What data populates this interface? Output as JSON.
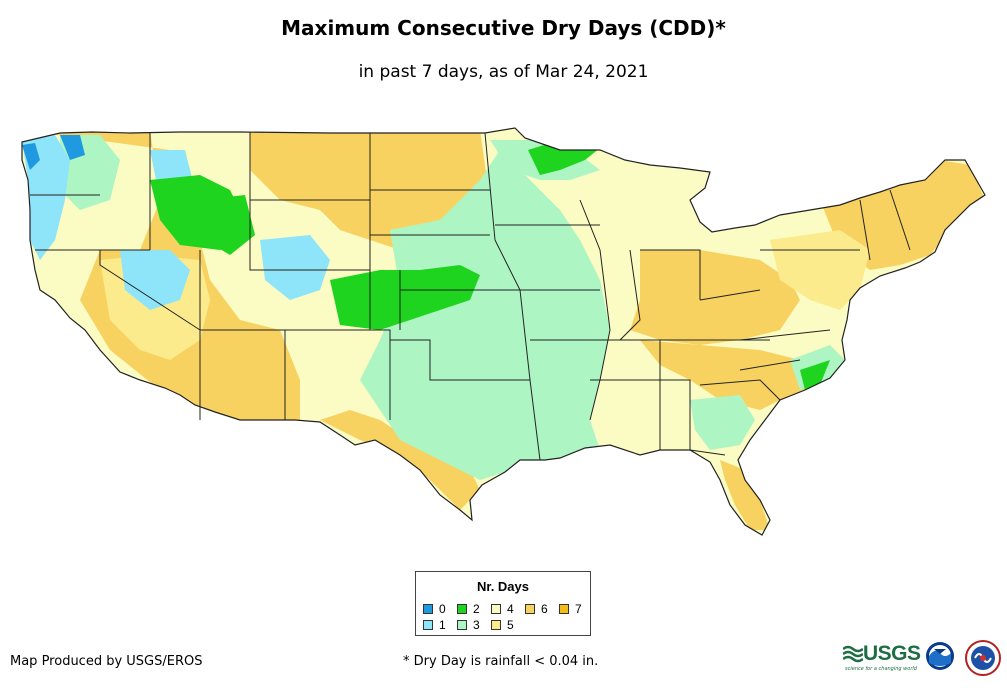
{
  "title": "Maximum Consecutive Dry Days (CDD)*",
  "subtitle": "in past 7 days, as of Mar 24, 2021",
  "legend": {
    "title": "Nr. Days",
    "items": [
      {
        "label": "0",
        "color": "#1f9ae0"
      },
      {
        "label": "1",
        "color": "#8ee4f8"
      },
      {
        "label": "2",
        "color": "#1ed41e"
      },
      {
        "label": "3",
        "color": "#aef5c4"
      },
      {
        "label": "4",
        "color": "#fbfbc4"
      },
      {
        "label": "5",
        "color": "#fbeb8c"
      },
      {
        "label": "6",
        "color": "#f8d260"
      },
      {
        "label": "7",
        "color": "#f4bc14"
      }
    ]
  },
  "credit": "Map Produced by USGS/EROS",
  "footnote": "* Dry Day is rainfall < 0.04 in.",
  "logos": {
    "usgs": "USGS",
    "usgs_tagline": "science for a changing world",
    "noaa": "noaa-logo",
    "nws": "nws-logo"
  }
}
